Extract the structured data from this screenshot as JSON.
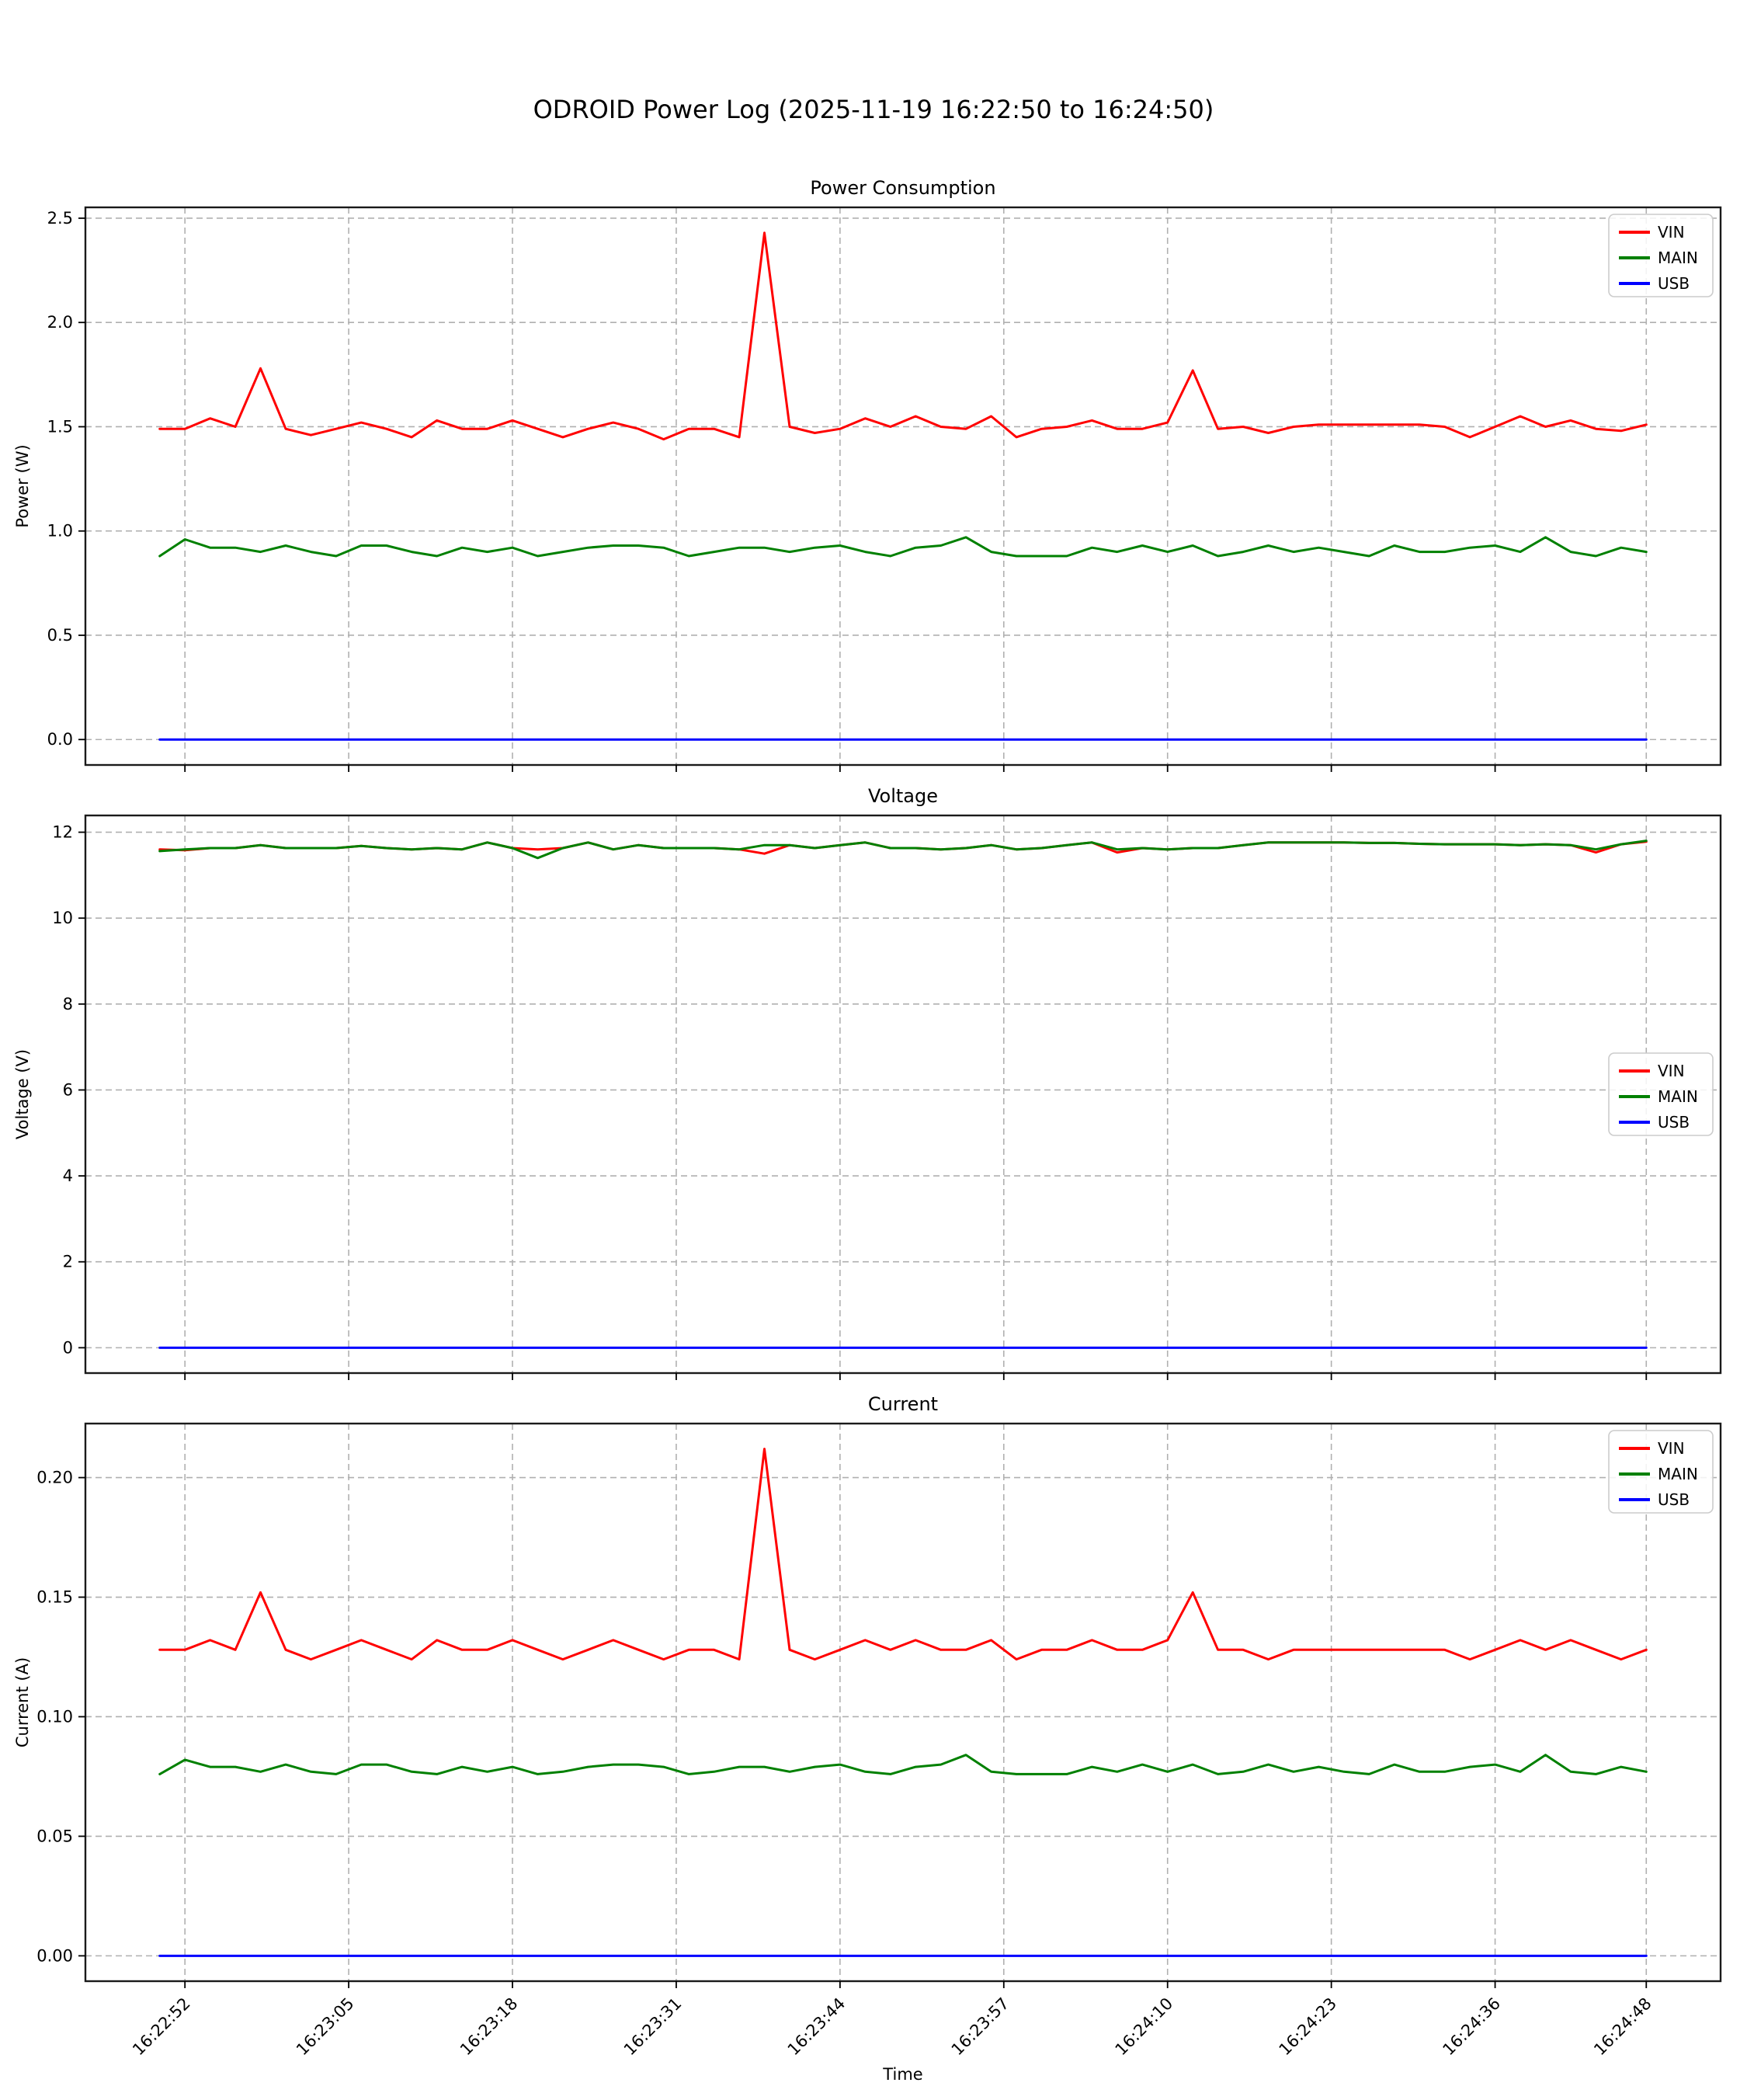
{
  "figure": {
    "suptitle": "ODROID Power Log (2025-11-19 16:22:50 to 16:24:50)",
    "xlabel": "Time"
  },
  "colors": {
    "vin": "#ff0000",
    "main": "#008000",
    "usb": "#0000ff",
    "grid": "#b0b0b0",
    "spine": "#1a1a1a"
  },
  "x_axis": {
    "points": 60,
    "start_s": 0,
    "step_s": 2,
    "xlim": [
      -5.9,
      123.9
    ],
    "ticks": [
      {
        "t": 2,
        "label": "16:22:52"
      },
      {
        "t": 15,
        "label": "16:23:05"
      },
      {
        "t": 28,
        "label": "16:23:18"
      },
      {
        "t": 41,
        "label": "16:23:31"
      },
      {
        "t": 54,
        "label": "16:23:44"
      },
      {
        "t": 67,
        "label": "16:23:57"
      },
      {
        "t": 80,
        "label": "16:24:10"
      },
      {
        "t": 93,
        "label": "16:24:23"
      },
      {
        "t": 106,
        "label": "16:24:36"
      },
      {
        "t": 118,
        "label": "16:24:48"
      }
    ]
  },
  "chart_data": [
    {
      "type": "line",
      "title": "Power Consumption",
      "ylabel": "Power (W)",
      "ylim": [
        -0.122,
        2.552
      ],
      "legend_pos": "upper-right",
      "grid": true,
      "yticks": [
        {
          "v": 0.0,
          "label": "0.0"
        },
        {
          "v": 0.5,
          "label": "0.5"
        },
        {
          "v": 1.0,
          "label": "1.0"
        },
        {
          "v": 1.5,
          "label": "1.5"
        },
        {
          "v": 2.0,
          "label": "2.0"
        },
        {
          "v": 2.5,
          "label": "2.5"
        }
      ],
      "series": [
        {
          "name": "VIN",
          "color": "vin",
          "values": [
            1.49,
            1.49,
            1.54,
            1.5,
            1.78,
            1.49,
            1.46,
            1.49,
            1.52,
            1.49,
            1.45,
            1.53,
            1.49,
            1.49,
            1.53,
            1.49,
            1.45,
            1.49,
            1.52,
            1.49,
            1.44,
            1.49,
            1.49,
            1.45,
            2.43,
            1.5,
            1.47,
            1.49,
            1.54,
            1.5,
            1.55,
            1.5,
            1.49,
            1.55,
            1.45,
            1.49,
            1.5,
            1.53,
            1.49,
            1.49,
            1.52,
            1.77,
            1.49,
            1.5,
            1.47,
            1.5,
            1.51,
            1.51,
            1.51,
            1.51,
            1.51,
            1.5,
            1.45,
            1.5,
            1.55,
            1.5,
            1.53,
            1.49,
            1.48,
            1.51
          ]
        },
        {
          "name": "MAIN",
          "color": "main",
          "values": [
            0.88,
            0.96,
            0.92,
            0.92,
            0.9,
            0.93,
            0.9,
            0.88,
            0.93,
            0.93,
            0.9,
            0.88,
            0.92,
            0.9,
            0.92,
            0.88,
            0.9,
            0.92,
            0.93,
            0.93,
            0.92,
            0.88,
            0.9,
            0.92,
            0.92,
            0.9,
            0.92,
            0.93,
            0.9,
            0.88,
            0.92,
            0.93,
            0.97,
            0.9,
            0.88,
            0.88,
            0.88,
            0.92,
            0.9,
            0.93,
            0.9,
            0.93,
            0.88,
            0.9,
            0.93,
            0.9,
            0.92,
            0.9,
            0.88,
            0.93,
            0.9,
            0.9,
            0.92,
            0.93,
            0.9,
            0.97,
            0.9,
            0.88,
            0.92,
            0.9
          ]
        },
        {
          "name": "USB",
          "color": "usb",
          "constant": 0.0
        }
      ]
    },
    {
      "type": "line",
      "title": "Voltage",
      "ylabel": "Voltage (V)",
      "ylim": [
        -0.59,
        12.39
      ],
      "legend_pos": "center-right",
      "grid": true,
      "yticks": [
        {
          "v": 0,
          "label": "0"
        },
        {
          "v": 2,
          "label": "2"
        },
        {
          "v": 4,
          "label": "4"
        },
        {
          "v": 6,
          "label": "6"
        },
        {
          "v": 8,
          "label": "8"
        },
        {
          "v": 10,
          "label": "10"
        },
        {
          "v": 12,
          "label": "12"
        }
      ],
      "series": [
        {
          "name": "VIN",
          "color": "vin",
          "values": [
            11.6,
            11.58,
            11.63,
            11.63,
            11.7,
            11.63,
            11.63,
            11.63,
            11.68,
            11.63,
            11.6,
            11.63,
            11.6,
            11.76,
            11.63,
            11.6,
            11.63,
            11.76,
            11.6,
            11.7,
            11.63,
            11.63,
            11.63,
            11.6,
            11.5,
            11.7,
            11.63,
            11.7,
            11.76,
            11.63,
            11.63,
            11.6,
            11.63,
            11.7,
            11.6,
            11.63,
            11.7,
            11.76,
            11.53,
            11.63,
            11.6,
            11.63,
            11.63,
            11.7,
            11.76,
            11.76,
            11.76,
            11.76,
            11.75,
            11.75,
            11.73,
            11.72,
            11.72,
            11.72,
            11.7,
            11.72,
            11.7,
            11.53,
            11.72,
            11.78
          ]
        },
        {
          "name": "MAIN",
          "color": "main",
          "values": [
            11.56,
            11.6,
            11.63,
            11.63,
            11.7,
            11.63,
            11.63,
            11.63,
            11.68,
            11.63,
            11.6,
            11.63,
            11.6,
            11.76,
            11.63,
            11.4,
            11.63,
            11.76,
            11.6,
            11.7,
            11.63,
            11.63,
            11.63,
            11.6,
            11.7,
            11.7,
            11.63,
            11.7,
            11.76,
            11.63,
            11.63,
            11.6,
            11.63,
            11.7,
            11.6,
            11.63,
            11.7,
            11.76,
            11.6,
            11.63,
            11.6,
            11.63,
            11.63,
            11.7,
            11.76,
            11.76,
            11.76,
            11.76,
            11.75,
            11.75,
            11.73,
            11.72,
            11.72,
            11.72,
            11.7,
            11.72,
            11.7,
            11.6,
            11.72,
            11.8
          ]
        },
        {
          "name": "USB",
          "color": "usb",
          "constant": 0.0
        }
      ]
    },
    {
      "type": "line",
      "title": "Current",
      "ylabel": "Current (A)",
      "ylim": [
        -0.0106,
        0.2226
      ],
      "legend_pos": "upper-right",
      "grid": true,
      "yticks": [
        {
          "v": 0.0,
          "label": "0.00"
        },
        {
          "v": 0.05,
          "label": "0.05"
        },
        {
          "v": 0.1,
          "label": "0.10"
        },
        {
          "v": 0.15,
          "label": "0.15"
        },
        {
          "v": 0.2,
          "label": "0.20"
        }
      ],
      "series": [
        {
          "name": "VIN",
          "color": "vin",
          "values": [
            0.128,
            0.128,
            0.132,
            0.128,
            0.152,
            0.128,
            0.124,
            0.128,
            0.132,
            0.128,
            0.124,
            0.132,
            0.128,
            0.128,
            0.132,
            0.128,
            0.124,
            0.128,
            0.132,
            0.128,
            0.124,
            0.128,
            0.128,
            0.124,
            0.212,
            0.128,
            0.124,
            0.128,
            0.132,
            0.128,
            0.132,
            0.128,
            0.128,
            0.132,
            0.124,
            0.128,
            0.128,
            0.132,
            0.128,
            0.128,
            0.132,
            0.152,
            0.128,
            0.128,
            0.124,
            0.128,
            0.128,
            0.128,
            0.128,
            0.128,
            0.128,
            0.128,
            0.124,
            0.128,
            0.132,
            0.128,
            0.132,
            0.128,
            0.124,
            0.128
          ]
        },
        {
          "name": "MAIN",
          "color": "main",
          "values": [
            0.076,
            0.082,
            0.079,
            0.079,
            0.077,
            0.08,
            0.077,
            0.076,
            0.08,
            0.08,
            0.077,
            0.076,
            0.079,
            0.077,
            0.079,
            0.076,
            0.077,
            0.079,
            0.08,
            0.08,
            0.079,
            0.076,
            0.077,
            0.079,
            0.079,
            0.077,
            0.079,
            0.08,
            0.077,
            0.076,
            0.079,
            0.08,
            0.084,
            0.077,
            0.076,
            0.076,
            0.076,
            0.079,
            0.077,
            0.08,
            0.077,
            0.08,
            0.076,
            0.077,
            0.08,
            0.077,
            0.079,
            0.077,
            0.076,
            0.08,
            0.077,
            0.077,
            0.079,
            0.08,
            0.077,
            0.084,
            0.077,
            0.076,
            0.079,
            0.077
          ]
        },
        {
          "name": "USB",
          "color": "usb",
          "constant": 0.0
        }
      ]
    }
  ]
}
